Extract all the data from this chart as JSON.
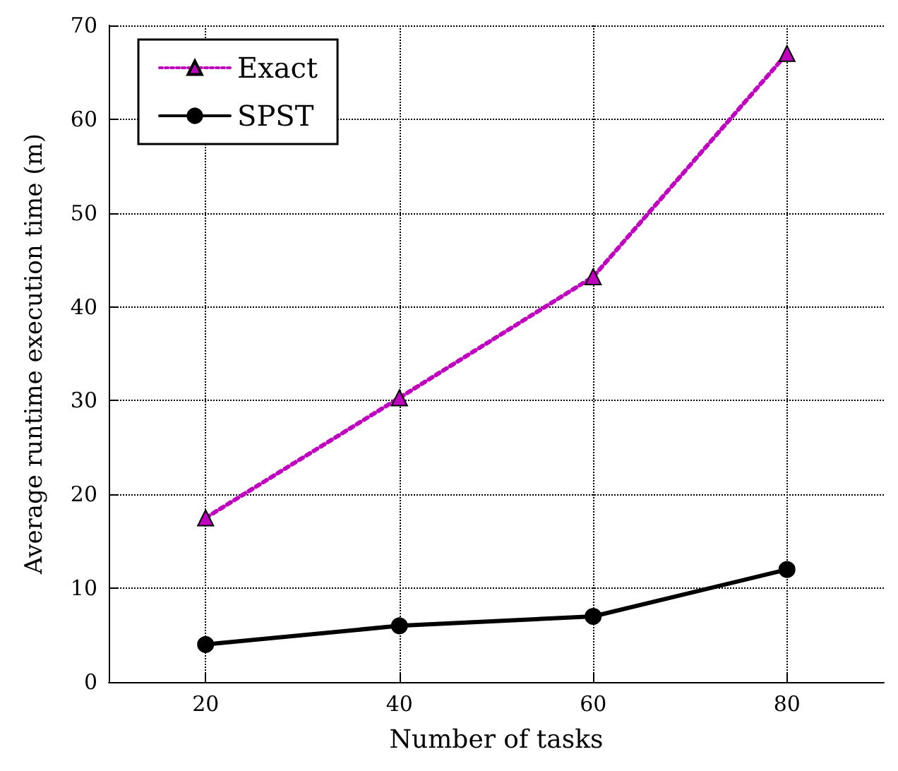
{
  "chart_data": {
    "type": "line",
    "xlabel": "Number of tasks",
    "ylabel": "Average runtime execution time (m)",
    "x": [
      20,
      40,
      60,
      80
    ],
    "series": [
      {
        "name": "Exact",
        "color": "#bf00bf",
        "values": [
          17.5,
          30.3,
          43.2,
          67
        ],
        "marker": "triangle",
        "line_style": "dotted"
      },
      {
        "name": "SPST",
        "color": "#000000",
        "values": [
          4,
          6,
          7,
          12
        ],
        "marker": "circle",
        "line_style": "solid"
      }
    ],
    "xlim": [
      10,
      90
    ],
    "xticks": [
      20,
      40,
      60,
      80
    ],
    "ylim": [
      0,
      70
    ],
    "yticks": [
      0,
      10,
      20,
      30,
      40,
      50,
      60,
      70
    ],
    "grid": true,
    "legend": "top left"
  }
}
